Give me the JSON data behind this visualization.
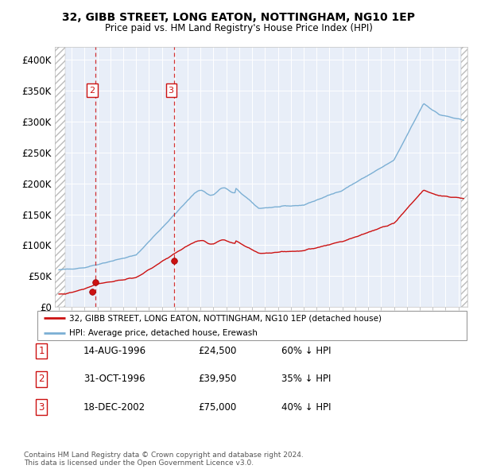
{
  "title1": "32, GIBB STREET, LONG EATON, NOTTINGHAM, NG10 1EP",
  "title2": "Price paid vs. HM Land Registry's House Price Index (HPI)",
  "hpi_label": "HPI: Average price, detached house, Erewash",
  "price_label": "32, GIBB STREET, LONG EATON, NOTTINGHAM, NG10 1EP (detached house)",
  "hpi_color": "#7bafd4",
  "price_color": "#cc1111",
  "bg_color": "#e8eef8",
  "transactions": [
    {
      "label": "1",
      "date": "14-AUG-1996",
      "price_str": "£24,500",
      "note": "60% ↓ HPI",
      "x_year": 1996.62,
      "price": 24500
    },
    {
      "label": "2",
      "date": "31-OCT-1996",
      "price_str": "£39,950",
      "note": "35% ↓ HPI",
      "x_year": 1996.84,
      "price": 39950
    },
    {
      "label": "3",
      "date": "18-DEC-2002",
      "price_str": "£75,000",
      "note": "40% ↓ HPI",
      "x_year": 2002.96,
      "price": 75000
    }
  ],
  "footer": "Contains HM Land Registry data © Crown copyright and database right 2024.\nThis data is licensed under the Open Government Licence v3.0.",
  "xmin": 1993.7,
  "xmax": 2025.7,
  "ymin": 0,
  "ymax": 420000,
  "yticks": [
    0,
    50000,
    100000,
    150000,
    200000,
    250000,
    300000,
    350000,
    400000
  ],
  "ytick_labels": [
    "£0",
    "£50K",
    "£100K",
    "£150K",
    "£200K",
    "£250K",
    "£300K",
    "£350K",
    "£400K"
  ],
  "xticks": [
    1994,
    1995,
    1996,
    1997,
    1998,
    1999,
    2000,
    2001,
    2002,
    2003,
    2004,
    2005,
    2006,
    2007,
    2008,
    2009,
    2010,
    2011,
    2012,
    2013,
    2014,
    2015,
    2016,
    2017,
    2018,
    2019,
    2020,
    2021,
    2022,
    2023,
    2024,
    2025
  ],
  "hatch_left_end": 1994.5,
  "hatch_right_start": 2025.2
}
